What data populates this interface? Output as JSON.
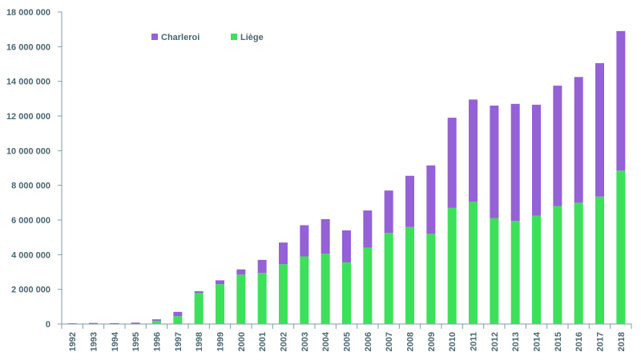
{
  "chart_data": {
    "type": "bar",
    "stacked": true,
    "categories": [
      "1992",
      "1993",
      "1994",
      "1995",
      "1996",
      "1997",
      "1998",
      "1999",
      "2000",
      "2001",
      "2002",
      "2003",
      "2004",
      "2005",
      "2006",
      "2007",
      "2008",
      "2009",
      "2010",
      "2011",
      "2012",
      "2013",
      "2014",
      "2015",
      "2016",
      "2017",
      "2018"
    ],
    "series": [
      {
        "name": "Liège",
        "color": "#3de05a",
        "values": [
          0,
          0,
          0,
          0,
          180000,
          450000,
          1800000,
          2300000,
          2850000,
          2950000,
          3450000,
          3900000,
          4050000,
          3550000,
          4400000,
          5250000,
          5600000,
          5200000,
          6700000,
          7050000,
          6100000,
          5950000,
          6250000,
          6800000,
          7000000,
          7350000,
          8850000
        ]
      },
      {
        "name": "Charleroi",
        "color": "#9461d6",
        "values": [
          40000,
          60000,
          50000,
          80000,
          90000,
          250000,
          90000,
          220000,
          300000,
          750000,
          1250000,
          1800000,
          2000000,
          1850000,
          2150000,
          2450000,
          2950000,
          3950000,
          5200000,
          5900000,
          6500000,
          6750000,
          6400000,
          6950000,
          7250000,
          7700000,
          8050000
        ]
      }
    ],
    "ylim": [
      0,
      18000000
    ],
    "yticks": [
      0,
      2000000,
      4000000,
      6000000,
      8000000,
      10000000,
      12000000,
      14000000,
      16000000,
      18000000
    ],
    "ytick_labels": [
      "0",
      "2 000 000",
      "4 000 000",
      "6 000 000",
      "8 000 000",
      "10 000 000",
      "12 000 000",
      "14 000 000",
      "16 000 000",
      "18 000 000"
    ],
    "legend": {
      "placement": "top-left",
      "items": [
        {
          "label": "Charleroi",
          "color": "#9461d6"
        },
        {
          "label": "Liège",
          "color": "#3de05a"
        }
      ]
    },
    "grid": false,
    "axis_color": "#7f9ba6",
    "label_color": "#4a6670",
    "title": "",
    "xlabel": "",
    "ylabel": ""
  }
}
